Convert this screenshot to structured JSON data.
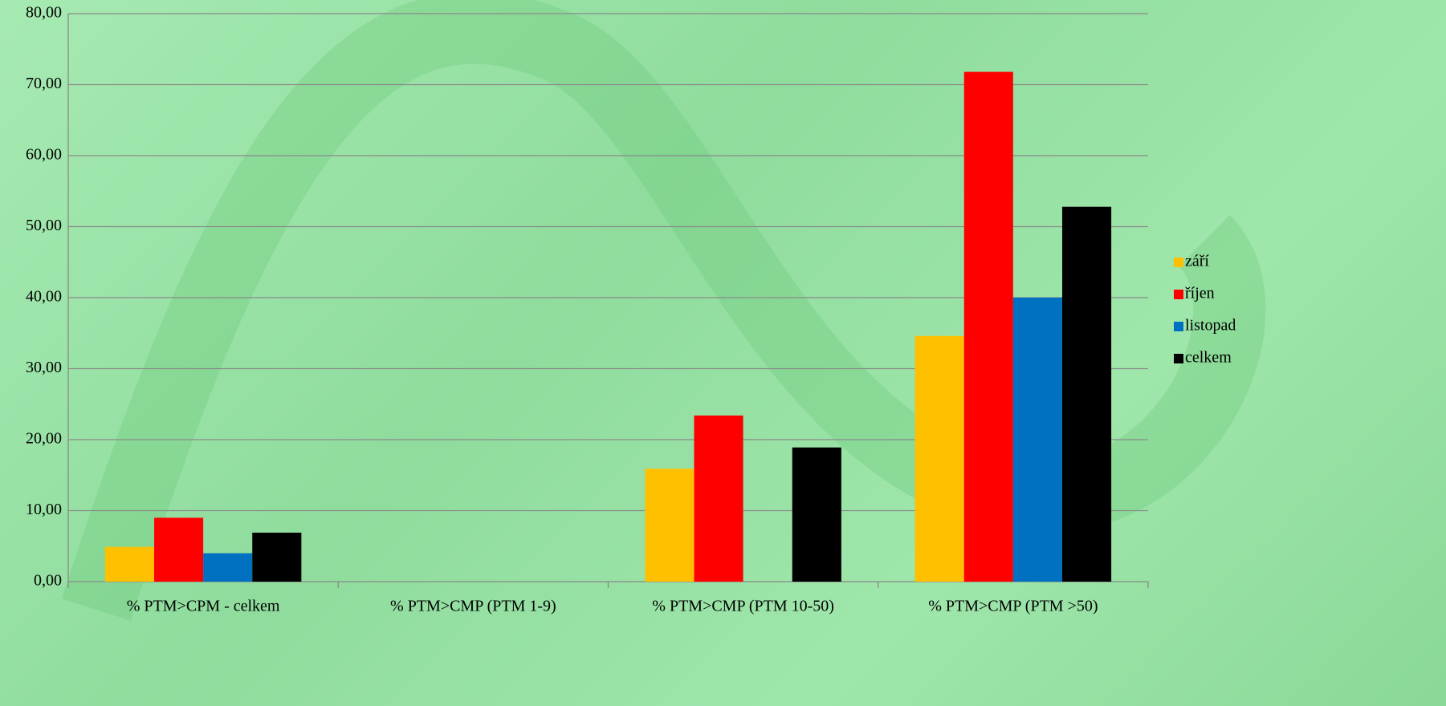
{
  "chart_data": {
    "type": "bar",
    "categories": [
      "% PTM>CPM - celkem",
      "% PTM>CMP (PTM 1-9)",
      "% PTM>CMP (PTM 10-50)",
      "% PTM>CMP (PTM >50)"
    ],
    "series": [
      {
        "name": "září",
        "color": "#ffc000",
        "values": [
          4.9,
          0,
          15.9,
          34.6
        ]
      },
      {
        "name": "říjen",
        "color": "#ff0000",
        "values": [
          9.0,
          0,
          23.4,
          71.8
        ]
      },
      {
        "name": "listopad",
        "color": "#0070c0",
        "values": [
          4.0,
          0,
          0,
          40.0
        ]
      },
      {
        "name": "celkem",
        "color": "#000000",
        "values": [
          6.9,
          0,
          18.9,
          52.8
        ]
      }
    ],
    "ylim": [
      0,
      80
    ],
    "yticks": [
      {
        "value": 0,
        "label": "0,00"
      },
      {
        "value": 10,
        "label": "10,00"
      },
      {
        "value": 20,
        "label": "20,00"
      },
      {
        "value": 30,
        "label": "30,00"
      },
      {
        "value": 40,
        "label": "40,00"
      },
      {
        "value": 50,
        "label": "50,00"
      },
      {
        "value": 60,
        "label": "60,00"
      },
      {
        "value": 70,
        "label": "70,00"
      },
      {
        "value": 80,
        "label": "80,00"
      }
    ],
    "grid": true,
    "legend": "right"
  }
}
